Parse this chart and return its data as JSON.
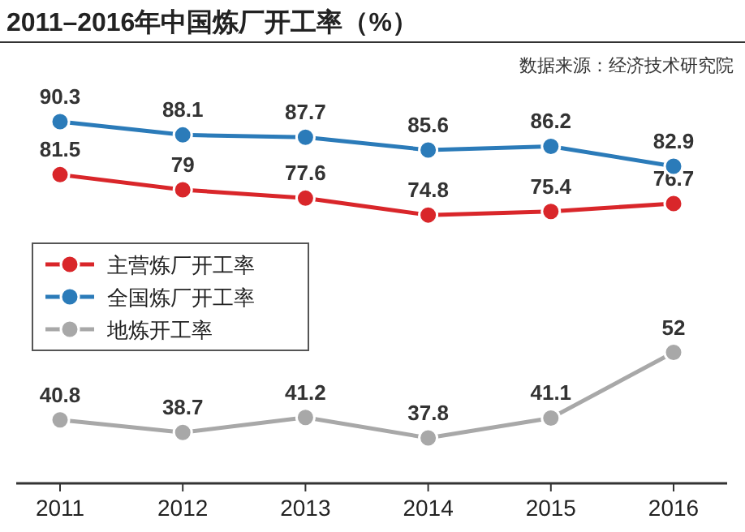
{
  "chart_data": {
    "type": "line",
    "title": "2011–2016年中国炼厂开工率（%）",
    "annotations": [
      "数据来源：经济技术研究院"
    ],
    "categories": [
      "2011",
      "2012",
      "2013",
      "2014",
      "2015",
      "2016"
    ],
    "series": [
      {
        "name": "主营炼厂开工率",
        "color": "#d9262a",
        "values": [
          81.5,
          79,
          77.6,
          74.8,
          75.4,
          76.7
        ]
      },
      {
        "name": "全国炼厂开工率",
        "color": "#2b7bb9",
        "values": [
          90.3,
          88.1,
          87.7,
          85.6,
          86.2,
          82.9
        ]
      },
      {
        "name": "地炼开工率",
        "color": "#a8a8a8",
        "values": [
          40.8,
          38.7,
          41.2,
          37.8,
          41.1,
          52
        ]
      }
    ],
    "data_labels": true,
    "legend": "left",
    "marker": "circle",
    "line_style": "solid",
    "grid": false,
    "tick_labels": "x"
  }
}
